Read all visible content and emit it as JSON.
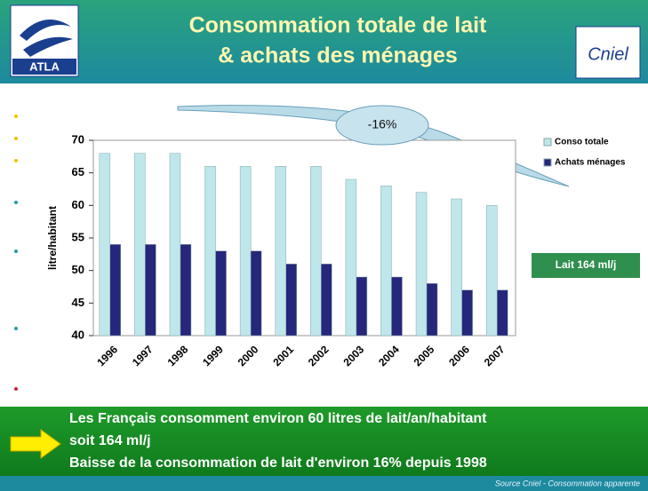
{
  "header": {
    "title_lines": [
      "Consommation totale de lait",
      "& achats des ménages"
    ],
    "logo_left": "ATLA",
    "logo_right": "Cniel"
  },
  "chart_data": {
    "type": "bar",
    "ylabel": "litre/habitant",
    "categories": [
      "1996",
      "1997",
      "1998",
      "1999",
      "2000",
      "2001",
      "2002",
      "2003",
      "2004",
      "2005",
      "2006",
      "2007"
    ],
    "series": [
      {
        "name": "Conso totale",
        "color": "#bfe6ea",
        "values": [
          68,
          68,
          68,
          66,
          66,
          66,
          66,
          64,
          63,
          62,
          61,
          60
        ]
      },
      {
        "name": "Achats ménages",
        "color": "#26267a",
        "values": [
          54,
          54,
          54,
          53,
          53,
          51,
          51,
          49,
          49,
          48,
          47,
          47
        ]
      }
    ],
    "ylim": [
      40,
      70
    ],
    "yticks": [
      40,
      45,
      50,
      55,
      60,
      65,
      70
    ],
    "grid": false,
    "legend": "right",
    "annotation": "-16%"
  },
  "badge": "Lait 164 ml/j",
  "footer": {
    "lines": [
      "Les Français consomment environ 60 litres de lait/an/habitant",
      "soit 164 ml/j",
      "Baisse de la consommation de lait d'environ 16% depuis 1998"
    ],
    "source": "Source Cniel - Consommation apparente"
  }
}
